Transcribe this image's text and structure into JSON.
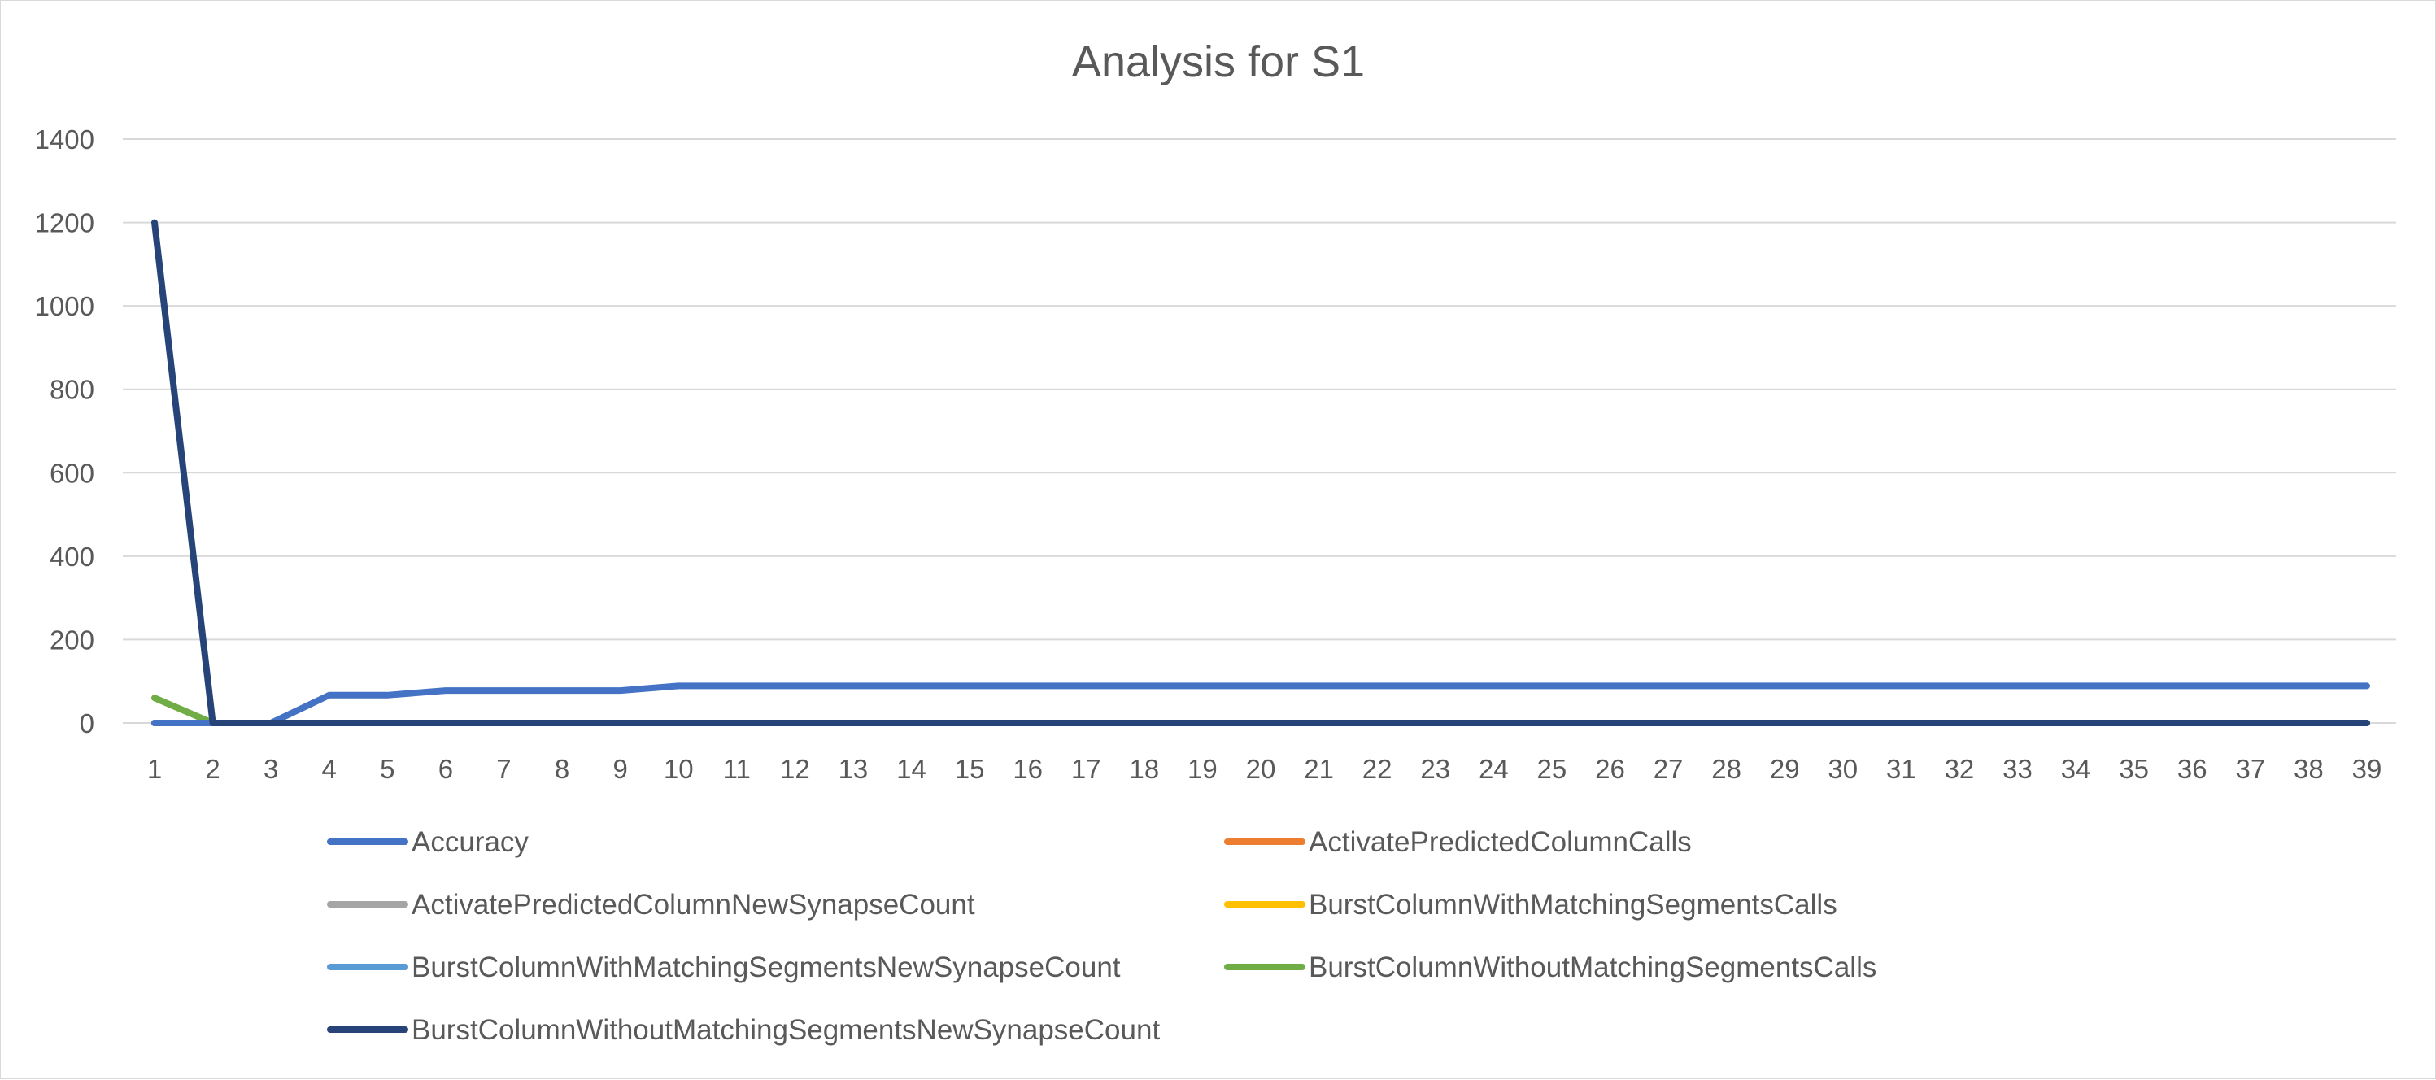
{
  "chart_data": {
    "type": "line",
    "title": "Analysis for S1",
    "xlabel": "",
    "ylabel": "",
    "x": [
      1,
      2,
      3,
      4,
      5,
      6,
      7,
      8,
      9,
      10,
      11,
      12,
      13,
      14,
      15,
      16,
      17,
      18,
      19,
      20,
      21,
      22,
      23,
      24,
      25,
      26,
      27,
      28,
      29,
      30,
      31,
      32,
      33,
      34,
      35,
      36,
      37,
      38,
      39
    ],
    "ylim": [
      0,
      1400
    ],
    "yticks": [
      0,
      200,
      400,
      600,
      800,
      1000,
      1200,
      1400
    ],
    "grid": true,
    "legend_position": "bottom",
    "series": [
      {
        "name": "Accuracy",
        "color": "#4472C4",
        "values": [
          0,
          0,
          0,
          66.7,
          66.7,
          77.8,
          77.8,
          77.8,
          77.8,
          88.9,
          88.9,
          88.9,
          88.9,
          88.9,
          88.9,
          88.9,
          88.9,
          88.9,
          88.9,
          88.9,
          88.9,
          88.9,
          88.9,
          88.9,
          88.9,
          88.9,
          88.9,
          88.9,
          88.9,
          88.9,
          88.9,
          88.9,
          88.9,
          88.9,
          88.9,
          88.9,
          88.9,
          88.9,
          88.9
        ]
      },
      {
        "name": "ActivatePredictedColumnCalls",
        "color": "#ED7D31",
        "values": [
          0,
          0,
          0,
          0,
          0,
          0,
          0,
          0,
          0,
          0,
          0,
          0,
          0,
          0,
          0,
          0,
          0,
          0,
          0,
          0,
          0,
          0,
          0,
          0,
          0,
          0,
          0,
          0,
          0,
          0,
          0,
          0,
          0,
          0,
          0,
          0,
          0,
          0,
          0
        ]
      },
      {
        "name": "ActivatePredictedColumnNewSynapseCount",
        "color": "#A5A5A5",
        "values": [
          0,
          0,
          0,
          0,
          0,
          0,
          0,
          0,
          0,
          0,
          0,
          0,
          0,
          0,
          0,
          0,
          0,
          0,
          0,
          0,
          0,
          0,
          0,
          0,
          0,
          0,
          0,
          0,
          0,
          0,
          0,
          0,
          0,
          0,
          0,
          0,
          0,
          0,
          0
        ]
      },
      {
        "name": "BurstColumnWithMatchingSegmentsCalls",
        "color": "#FFC000",
        "values": [
          0,
          0,
          0,
          0,
          0,
          0,
          0,
          0,
          0,
          0,
          0,
          0,
          0,
          0,
          0,
          0,
          0,
          0,
          0,
          0,
          0,
          0,
          0,
          0,
          0,
          0,
          0,
          0,
          0,
          0,
          0,
          0,
          0,
          0,
          0,
          0,
          0,
          0,
          0
        ]
      },
      {
        "name": "BurstColumnWithMatchingSegmentsNewSynapseCount",
        "color": "#5B9BD5",
        "values": [
          0,
          0,
          0,
          0,
          0,
          0,
          0,
          0,
          0,
          0,
          0,
          0,
          0,
          0,
          0,
          0,
          0,
          0,
          0,
          0,
          0,
          0,
          0,
          0,
          0,
          0,
          0,
          0,
          0,
          0,
          0,
          0,
          0,
          0,
          0,
          0,
          0,
          0,
          0
        ]
      },
      {
        "name": "BurstColumnWithoutMatchingSegmentsCalls",
        "color": "#70AD47",
        "values": [
          60,
          0,
          0,
          0,
          0,
          0,
          0,
          0,
          0,
          0,
          0,
          0,
          0,
          0,
          0,
          0,
          0,
          0,
          0,
          0,
          0,
          0,
          0,
          0,
          0,
          0,
          0,
          0,
          0,
          0,
          0,
          0,
          0,
          0,
          0,
          0,
          0,
          0,
          0
        ]
      },
      {
        "name": "BurstColumnWithoutMatchingSegmentsNewSynapseCount",
        "color": "#264478",
        "values": [
          1200,
          0,
          0,
          0,
          0,
          0,
          0,
          0,
          0,
          0,
          0,
          0,
          0,
          0,
          0,
          0,
          0,
          0,
          0,
          0,
          0,
          0,
          0,
          0,
          0,
          0,
          0,
          0,
          0,
          0,
          0,
          0,
          0,
          0,
          0,
          0,
          0,
          0,
          0
        ]
      }
    ]
  }
}
